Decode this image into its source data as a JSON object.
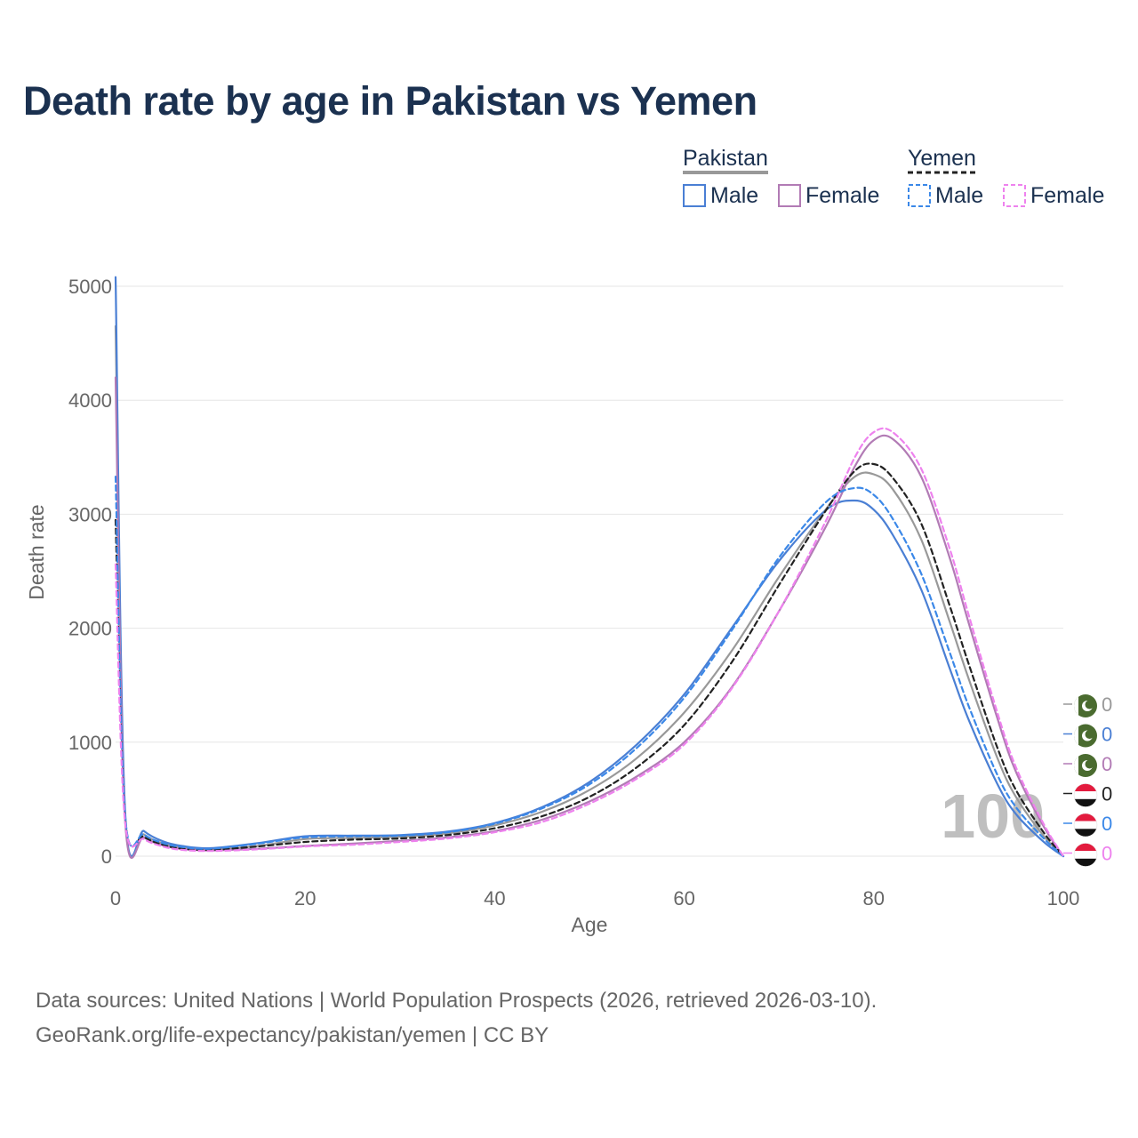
{
  "title": "Death rate by age in Pakistan vs Yemen",
  "source_line1": "Data sources: United Nations | World Population Prospects (2026, retrieved 2026-03-10).",
  "source_line2": "GeoRank.org/life-expectancy/pakistan/yemen | CC BY",
  "watermark_age": "100",
  "legend": {
    "groups": [
      {
        "name": "Pakistan",
        "items": [
          "Male",
          "Female"
        ]
      },
      {
        "name": "Yemen",
        "items": [
          "Male",
          "Female"
        ]
      }
    ]
  },
  "chart_data": {
    "type": "line",
    "title": "Death rate by age in Pakistan vs Yemen",
    "xlabel": "Age",
    "ylabel": "Death rate",
    "xlim": [
      0,
      100
    ],
    "ylim": [
      0,
      5000
    ],
    "xticks": [
      0,
      20,
      40,
      60,
      80,
      100
    ],
    "yticks": [
      0,
      1000,
      2000,
      3000,
      4000,
      5000
    ],
    "grid": "horizontal",
    "legend_position": "top-right",
    "x": [
      0,
      1,
      3,
      5,
      7,
      10,
      15,
      20,
      25,
      30,
      35,
      40,
      45,
      50,
      55,
      60,
      65,
      70,
      75,
      78,
      80,
      82,
      85,
      88,
      90,
      93,
      95,
      98,
      100
    ],
    "series": [
      {
        "name": "Pakistan Total",
        "color": "#999999",
        "dash": "solid",
        "values": [
          4650,
          360,
          190,
          110,
          75,
          60,
          90,
          150,
          160,
          170,
          200,
          270,
          390,
          580,
          860,
          1260,
          1800,
          2450,
          3050,
          3330,
          3350,
          3220,
          2780,
          2060,
          1560,
          870,
          520,
          170,
          0
        ],
        "end_value": "0"
      },
      {
        "name": "Pakistan Male",
        "color": "#4a7fd4",
        "dash": "solid",
        "values": [
          5080,
          400,
          220,
          130,
          90,
          70,
          115,
          175,
          180,
          185,
          215,
          290,
          430,
          650,
          980,
          1420,
          2000,
          2590,
          3040,
          3120,
          3040,
          2820,
          2340,
          1650,
          1200,
          640,
          370,
          120,
          0
        ],
        "end_value": "0"
      },
      {
        "name": "Pakistan Female",
        "color": "#b27bb5",
        "dash": "solid",
        "values": [
          4200,
          320,
          165,
          95,
          65,
          50,
          65,
          90,
          110,
          135,
          165,
          220,
          320,
          480,
          700,
          1000,
          1480,
          2150,
          2900,
          3420,
          3650,
          3660,
          3330,
          2620,
          2050,
          1220,
          740,
          250,
          0
        ],
        "end_value": "0"
      },
      {
        "name": "Yemen Total",
        "color": "#222222",
        "dash": "dashed",
        "values": [
          2950,
          330,
          170,
          100,
          65,
          55,
          85,
          125,
          145,
          155,
          185,
          245,
          350,
          520,
          780,
          1150,
          1700,
          2380,
          3040,
          3380,
          3440,
          3320,
          2920,
          2200,
          1690,
          960,
          580,
          200,
          0
        ],
        "end_value": "0"
      },
      {
        "name": "Yemen Male",
        "color": "#3b88e8",
        "dash": "dashed",
        "values": [
          3330,
          360,
          190,
          115,
          80,
          65,
          110,
          165,
          175,
          180,
          210,
          285,
          420,
          630,
          950,
          1390,
          1980,
          2620,
          3110,
          3230,
          3170,
          2960,
          2480,
          1790,
          1320,
          720,
          430,
          150,
          0
        ],
        "end_value": "0"
      },
      {
        "name": "Yemen Female",
        "color": "#ee82ee",
        "dash": "dashed",
        "values": [
          2560,
          300,
          150,
          85,
          55,
          45,
          60,
          85,
          100,
          125,
          155,
          210,
          300,
          460,
          680,
          980,
          1470,
          2150,
          2950,
          3500,
          3720,
          3720,
          3400,
          2700,
          2120,
          1270,
          780,
          270,
          0
        ],
        "end_value": "0"
      }
    ]
  },
  "end_labels": [
    {
      "country": "Pakistan",
      "series": "Total",
      "value": "0",
      "color": "#999999",
      "icon": "pakistan-flag-icon"
    },
    {
      "country": "Pakistan",
      "series": "Male",
      "value": "0",
      "color": "#4a7fd4",
      "icon": "pakistan-flag-icon"
    },
    {
      "country": "Pakistan",
      "series": "Female",
      "value": "0",
      "color": "#b27bb5",
      "icon": "pakistan-flag-icon"
    },
    {
      "country": "Yemen",
      "series": "Total",
      "value": "0",
      "color": "#222222",
      "icon": "yemen-flag-icon"
    },
    {
      "country": "Yemen",
      "series": "Male",
      "value": "0",
      "color": "#3b88e8",
      "icon": "yemen-flag-icon"
    },
    {
      "country": "Yemen",
      "series": "Female",
      "value": "0",
      "color": "#ee82ee",
      "icon": "yemen-flag-icon"
    }
  ],
  "colors": {
    "title": "#1b3150",
    "axis_text": "#666666",
    "grid": "#e6e6e6",
    "pakistan_green": "#4a6b2f",
    "yemen_red": "#e31b3e"
  }
}
